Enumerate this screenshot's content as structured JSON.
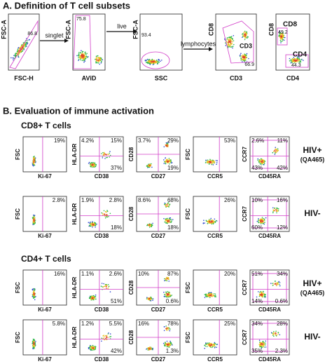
{
  "panel_a": {
    "title": "A. Definition of T cell subsets",
    "plots": [
      {
        "y_label": "FSC-A",
        "x_label": "FSC-H",
        "gate": "86.8"
      },
      {
        "y_label": "FSC-A",
        "x_label": "AViD",
        "gate": "75.8"
      },
      {
        "y_label": "FSC-A",
        "x_label": "SSC",
        "gate": "93.4"
      },
      {
        "y_label": "CD8",
        "x_label": "CD3",
        "gate": "66.9",
        "gate_label": "CD3"
      },
      {
        "y_label": "CD8",
        "x_label": "CD4",
        "gates": [
          {
            "label": "CD8",
            "value": "49.2"
          },
          {
            "label": "CD4",
            "value": "44.3"
          }
        ]
      }
    ],
    "arrows": [
      "singlet",
      "live",
      "lymphocytes"
    ]
  },
  "panel_b": {
    "title": "B. Evaluation of immune activation",
    "axes": [
      {
        "y": "FSC",
        "x": "Ki-67"
      },
      {
        "y": "HLA-DR",
        "x": "CD38"
      },
      {
        "y": "CD28",
        "x": "CD27"
      },
      {
        "y": "FSC",
        "x": "CCR5"
      },
      {
        "y": "CCR7",
        "x": "CD45RA"
      }
    ],
    "groups": [
      {
        "title": "CD8+ T cells",
        "rows": [
          {
            "label": "HIV+",
            "sublabel": "(QA465)",
            "plots": [
              [
                "19%"
              ],
              [
                "4.2%",
                "15%",
                "37%"
              ],
              [
                "3.7%",
                "29%",
                "19%"
              ],
              [
                "53%"
              ],
              [
                "2.6%",
                "11%",
                "43%",
                "42%"
              ]
            ]
          },
          {
            "label": "HIV-",
            "plots": [
              [
                "2.8%"
              ],
              [
                "1.9%",
                "2.8%",
                "18%"
              ],
              [
                "8.6%",
                "68%",
                "18%"
              ],
              [
                "26%"
              ],
              [
                "10%",
                "16%",
                "60%",
                "12%"
              ]
            ]
          }
        ]
      },
      {
        "title": "CD4+ T cells",
        "rows": [
          {
            "label": "HIV+",
            "sublabel": "(QA465)",
            "plots": [
              [
                "16%"
              ],
              [
                "1.1%",
                "2.6%",
                "51%"
              ],
              [
                "10%",
                "87%",
                "0.6%"
              ],
              [
                "20%"
              ],
              [
                "51%",
                "34%",
                "14%",
                "0.6%"
              ]
            ]
          },
          {
            "label": "HIV-",
            "plots": [
              [
                "5.8%"
              ],
              [
                "1.2%",
                "5.5%",
                "42%"
              ],
              [
                "16%",
                "78%",
                "1.3%"
              ],
              [
                "25%"
              ],
              [
                "34%",
                "28%",
                "35%",
                "2.3%"
              ]
            ]
          }
        ]
      }
    ]
  }
}
